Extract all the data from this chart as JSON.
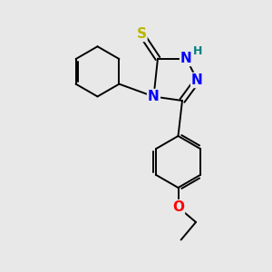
{
  "background_color": "#e8e8e8",
  "bond_color": "#000000",
  "atom_colors": {
    "S": "#b8b800",
    "N": "#0000ff",
    "O": "#ff0000",
    "H": "#008080",
    "C": "#000000"
  },
  "font_size": 10,
  "lw": 1.4
}
